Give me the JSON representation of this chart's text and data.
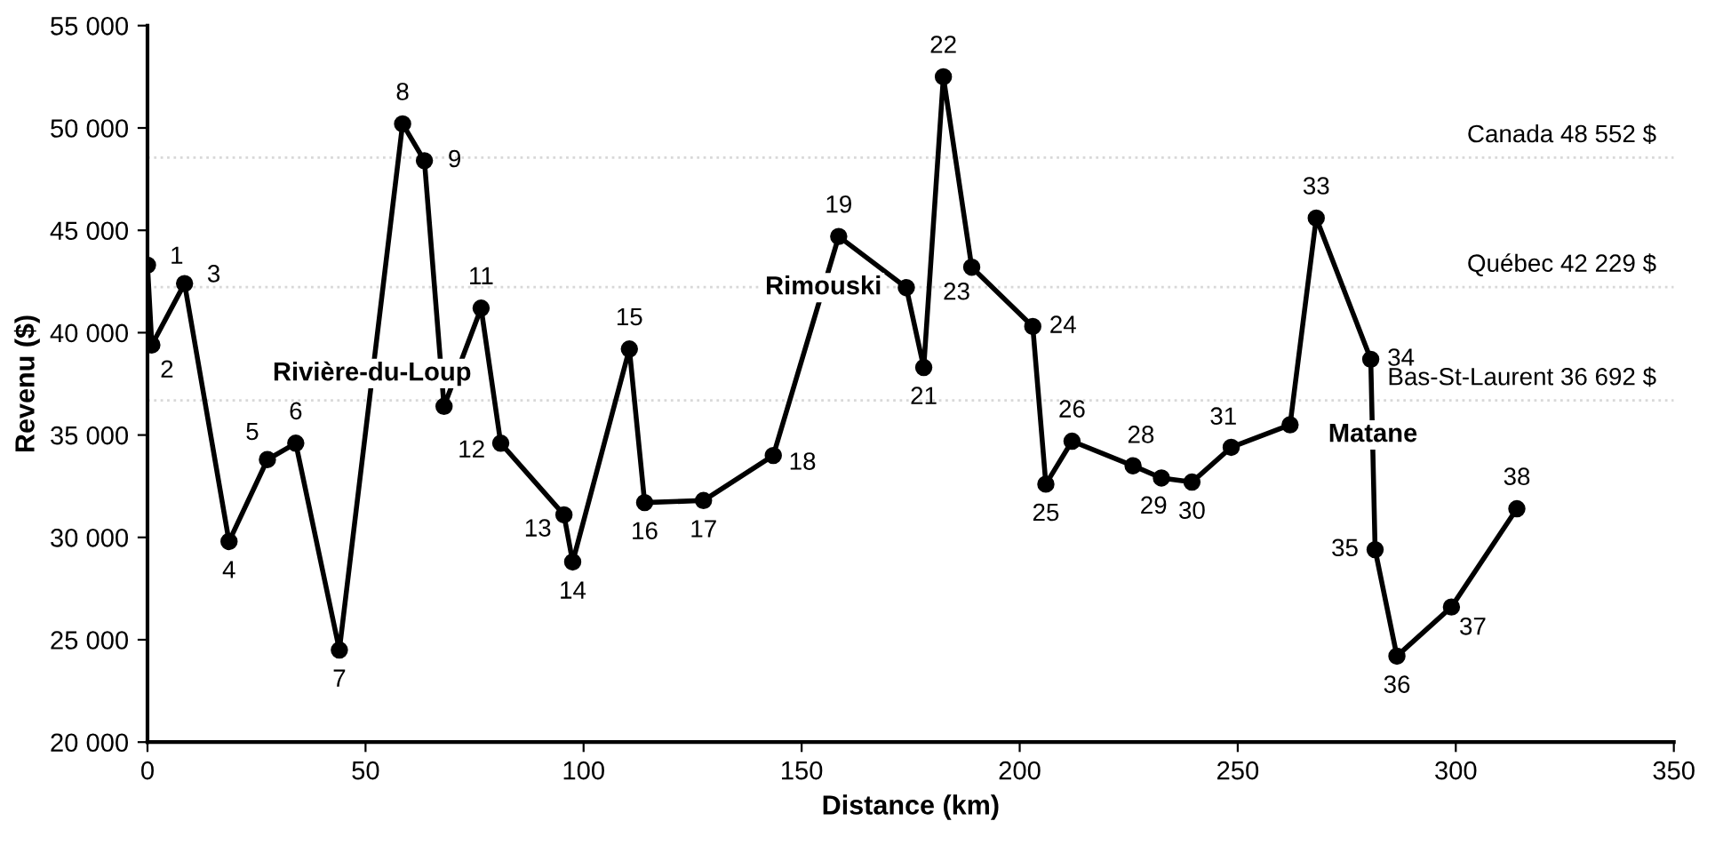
{
  "chart_data": {
    "type": "line",
    "xlabel": "Distance (km)",
    "ylabel": "Revenu ($)",
    "xlim": [
      0,
      350
    ],
    "xticks": [
      0,
      50,
      100,
      150,
      200,
      250,
      300,
      350
    ],
    "ylim": [
      20000,
      55000
    ],
    "yticks": [
      {
        "value": 20000,
        "label": "20 000"
      },
      {
        "value": 25000,
        "label": "25 000"
      },
      {
        "value": 30000,
        "label": "30 000"
      },
      {
        "value": 35000,
        "label": "35 000"
      },
      {
        "value": 40000,
        "label": "40 000"
      },
      {
        "value": 45000,
        "label": "45 000"
      },
      {
        "value": 50000,
        "label": "50 000"
      },
      {
        "value": 55000,
        "label": "55 000"
      }
    ],
    "grid": false,
    "marker": "circle",
    "line_style": "solid",
    "series": [
      {
        "color": "#000000",
        "x": [
          0,
          1,
          8.5,
          18.7,
          27.5,
          34,
          44,
          58.5,
          63.5,
          68,
          76.5,
          81,
          95.5,
          97.5,
          110.5,
          114,
          127.5,
          143.5,
          158.5,
          174,
          178,
          182.5,
          189,
          203,
          206,
          212,
          226,
          232.5,
          239.5,
          248.5,
          262,
          268,
          280.5,
          281.5,
          286.5,
          299,
          314
        ],
        "values": [
          43300,
          39400,
          42400,
          29800,
          33800,
          34600,
          24500,
          50200,
          48400,
          36400,
          41200,
          34600,
          31100,
          28800,
          39200,
          31700,
          31800,
          34000,
          44700,
          42200,
          38300,
          52500,
          43200,
          40300,
          32600,
          34700,
          33500,
          32900,
          32700,
          34400,
          35500,
          45600,
          38700,
          29400,
          24200,
          26600,
          31400
        ]
      }
    ],
    "ref_lines": [
      {
        "axis": "y",
        "value": 48552,
        "label": "Canada 48 552 $",
        "color": "#d8d8d8",
        "line_style": "dotted"
      },
      {
        "axis": "y",
        "value": 42229,
        "label": "Québec 42 229 $",
        "color": "#d8d8d8",
        "line_style": "dotted"
      },
      {
        "axis": "y",
        "value": 36692,
        "label": "Bas-St-Laurent 36 692 $",
        "color": "#d8d8d8",
        "line_style": "dotted"
      }
    ],
    "annotations": [
      {
        "text": "1",
        "x": 0,
        "y": 43300
      },
      {
        "text": "2",
        "x": 1,
        "y": 39400
      },
      {
        "text": "3",
        "x": 8.5,
        "y": 42400
      },
      {
        "text": "4",
        "x": 18.7,
        "y": 29800
      },
      {
        "text": "5",
        "x": 27.5,
        "y": 33800
      },
      {
        "text": "6",
        "x": 34,
        "y": 34600
      },
      {
        "text": "7",
        "x": 44,
        "y": 24500
      },
      {
        "text": "8",
        "x": 58.5,
        "y": 50200
      },
      {
        "text": "9",
        "x": 63.5,
        "y": 48400
      },
      {
        "text": "11",
        "x": 76.5,
        "y": 41200
      },
      {
        "text": "12",
        "x": 81,
        "y": 34600
      },
      {
        "text": "13",
        "x": 95.5,
        "y": 31100
      },
      {
        "text": "14",
        "x": 97.5,
        "y": 28800
      },
      {
        "text": "15",
        "x": 110.5,
        "y": 39200
      },
      {
        "text": "16",
        "x": 114,
        "y": 31700
      },
      {
        "text": "17",
        "x": 127.5,
        "y": 31800
      },
      {
        "text": "18",
        "x": 143.5,
        "y": 34000
      },
      {
        "text": "19",
        "x": 158.5,
        "y": 44700
      },
      {
        "text": "21",
        "x": 178,
        "y": 38300
      },
      {
        "text": "22",
        "x": 182.5,
        "y": 52500
      },
      {
        "text": "23",
        "x": 189,
        "y": 43200
      },
      {
        "text": "24",
        "x": 203,
        "y": 40300
      },
      {
        "text": "25",
        "x": 206,
        "y": 32600
      },
      {
        "text": "26",
        "x": 212,
        "y": 34700
      },
      {
        "text": "28",
        "x": 226,
        "y": 33500
      },
      {
        "text": "29",
        "x": 232.5,
        "y": 32900
      },
      {
        "text": "30",
        "x": 239.5,
        "y": 32700
      },
      {
        "text": "31",
        "x": 248.5,
        "y": 34400
      },
      {
        "text": "33",
        "x": 268,
        "y": 45600
      },
      {
        "text": "34",
        "x": 280.5,
        "y": 38700
      },
      {
        "text": "35",
        "x": 281.5,
        "y": 29400
      },
      {
        "text": "36",
        "x": 286.5,
        "y": 24200
      },
      {
        "text": "37",
        "x": 299,
        "y": 26600
      },
      {
        "text": "38",
        "x": 314,
        "y": 31400
      },
      {
        "text": "Rivière-du-Loup",
        "x": 51.5,
        "y": 38000
      },
      {
        "text": "Rimouski",
        "x": 155,
        "y": 42200
      },
      {
        "text": "Matane",
        "x": 281,
        "y": 35000
      }
    ]
  }
}
